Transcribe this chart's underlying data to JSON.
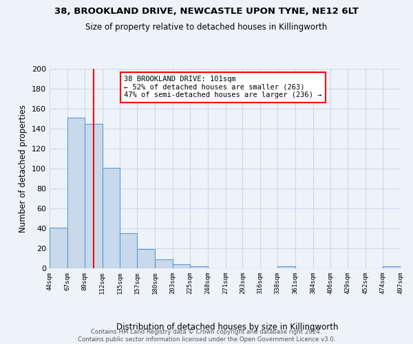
{
  "title_line1": "38, BROOKLAND DRIVE, NEWCASTLE UPON TYNE, NE12 6LT",
  "title_line2": "Size of property relative to detached houses in Killingworth",
  "xlabel": "Distribution of detached houses by size in Killingworth",
  "ylabel": "Number of detached properties",
  "bin_edges": [
    44,
    67,
    89,
    112,
    135,
    157,
    180,
    203,
    225,
    248,
    271,
    293,
    316,
    338,
    361,
    384,
    406,
    429,
    452,
    474,
    497
  ],
  "bar_heights": [
    41,
    151,
    145,
    101,
    35,
    19,
    9,
    4,
    2,
    0,
    0,
    0,
    0,
    2,
    0,
    0,
    0,
    0,
    0,
    2
  ],
  "bar_color": "#c8d9eb",
  "bar_edgecolor": "#5b9bd5",
  "grid_color": "#d0d8e8",
  "red_line_x": 101,
  "annotation_text": "38 BROOKLAND DRIVE: 101sqm\n← 52% of detached houses are smaller (263)\n47% of semi-detached houses are larger (236) →",
  "annotation_box_color": "white",
  "annotation_box_edgecolor": "red",
  "ylim": [
    0,
    200
  ],
  "yticks": [
    0,
    20,
    40,
    60,
    80,
    100,
    120,
    140,
    160,
    180,
    200
  ],
  "footer_text": "Contains HM Land Registry data © Crown copyright and database right 2024.\nContains public sector information licensed under the Open Government Licence v3.0.",
  "bg_color": "#eef2f9"
}
